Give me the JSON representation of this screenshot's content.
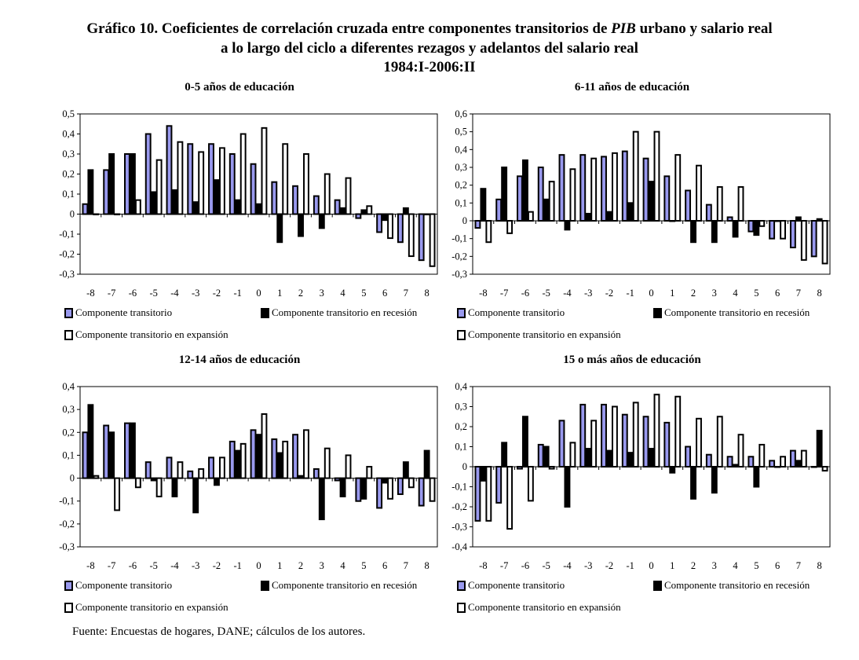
{
  "title": {
    "line1_pre": "Gráfico 10. Coeficientes de correlación cruzada entre componentes transitorios de ",
    "line1_italic": "PIB",
    "line1_post": " urbano y salario real",
    "line2": "a lo largo del ciclo a diferentes rezagos y adelantos del salario real",
    "line3": "1984:I-2006:II"
  },
  "legend": {
    "transitorio": "Componente transitorio",
    "recesion": "Componente transitorio en recesión",
    "expansion": "Componente transitorio en expansión"
  },
  "colors": {
    "transitorio": "#9999ee",
    "recesion": "#000000",
    "expansion": "#ffffff"
  },
  "source": "Fuente: Encuestas de hogares, DANE; cálculos de los autores.",
  "chart_data": [
    {
      "type": "bar",
      "title": "0-5 años de educación",
      "categories": [
        "-8",
        "-7",
        "-6",
        "-5",
        "-4",
        "-3",
        "-2",
        "-1",
        "0",
        "1",
        "2",
        "3",
        "4",
        "5",
        "6",
        "7",
        "8"
      ],
      "ylim": [
        -0.3,
        0.5
      ],
      "yticks": [
        "0,5",
        "0,4",
        "0,3",
        "0,2",
        "0,1",
        "0",
        "-0,1",
        "-0,2",
        "-0,3"
      ],
      "ytick_values": [
        0.5,
        0.4,
        0.3,
        0.2,
        0.1,
        0,
        -0.1,
        -0.2,
        -0.3
      ],
      "legend_position": "bottom",
      "series": [
        {
          "name": "Componente transitorio",
          "values": [
            0.05,
            0.22,
            0.3,
            0.4,
            0.44,
            0.35,
            0.35,
            0.3,
            0.25,
            0.16,
            0.14,
            0.09,
            0.07,
            -0.02,
            -0.09,
            -0.14,
            -0.23
          ]
        },
        {
          "name": "Componente transitorio en recesión",
          "values": [
            0.22,
            0.3,
            0.3,
            0.11,
            0.12,
            0.06,
            0.17,
            0.07,
            0.05,
            -0.14,
            -0.11,
            -0.07,
            0.03,
            0.02,
            -0.03,
            0.03,
            0.0
          ]
        },
        {
          "name": "Componente transitorio en expansión",
          "values": [
            0.0,
            0.0,
            0.07,
            0.27,
            0.36,
            0.31,
            0.33,
            0.4,
            0.43,
            0.35,
            0.3,
            0.2,
            0.18,
            0.04,
            -0.12,
            -0.21,
            -0.26
          ]
        }
      ]
    },
    {
      "type": "bar",
      "title": "6-11 años de educación",
      "categories": [
        "-8",
        "-7",
        "-6",
        "-5",
        "-4",
        "-3",
        "-2",
        "-1",
        "0",
        "1",
        "2",
        "3",
        "4",
        "5",
        "6",
        "7",
        "8"
      ],
      "ylim": [
        -0.3,
        0.6
      ],
      "yticks": [
        "0,6",
        "0,5",
        "0,4",
        "0,3",
        "0,2",
        "0,1",
        "0",
        "-0,1",
        "-0,2",
        "-0,3"
      ],
      "ytick_values": [
        0.6,
        0.5,
        0.4,
        0.3,
        0.2,
        0.1,
        0,
        -0.1,
        -0.2,
        -0.3
      ],
      "legend_position": "bottom",
      "series": [
        {
          "name": "Componente transitorio",
          "values": [
            -0.04,
            0.12,
            0.25,
            0.3,
            0.37,
            0.37,
            0.36,
            0.39,
            0.35,
            0.25,
            0.17,
            0.09,
            0.02,
            -0.06,
            -0.1,
            -0.15,
            -0.2
          ]
        },
        {
          "name": "Componente transitorio en recesión",
          "values": [
            0.18,
            0.3,
            0.34,
            0.12,
            -0.05,
            0.04,
            0.05,
            0.1,
            0.22,
            0.0,
            -0.12,
            -0.12,
            -0.09,
            -0.08,
            0.0,
            0.02,
            0.01
          ]
        },
        {
          "name": "Componente transitorio en expansión",
          "values": [
            -0.12,
            -0.07,
            0.05,
            0.22,
            0.29,
            0.35,
            0.38,
            0.5,
            0.5,
            0.37,
            0.31,
            0.19,
            0.19,
            -0.03,
            -0.1,
            -0.22,
            -0.24
          ]
        }
      ]
    },
    {
      "type": "bar",
      "title": "12-14 años de educación",
      "categories": [
        "-8",
        "-7",
        "-6",
        "-5",
        "-4",
        "-3",
        "-2",
        "-1",
        "0",
        "1",
        "2",
        "3",
        "4",
        "5",
        "6",
        "7",
        "8"
      ],
      "ylim": [
        -0.3,
        0.4
      ],
      "yticks": [
        "0,4",
        "0,3",
        "0,2",
        "0,1",
        "0",
        "-0,1",
        "-0,2",
        "-0,3"
      ],
      "ytick_values": [
        0.4,
        0.3,
        0.2,
        0.1,
        0,
        -0.1,
        -0.2,
        -0.3
      ],
      "legend_position": "bottom",
      "series": [
        {
          "name": "Componente transitorio",
          "values": [
            0.2,
            0.23,
            0.24,
            0.07,
            0.09,
            0.03,
            0.09,
            0.16,
            0.21,
            0.17,
            0.19,
            0.04,
            -0.01,
            -0.1,
            -0.13,
            -0.07,
            -0.12
          ]
        },
        {
          "name": "Componente transitorio en recesión",
          "values": [
            0.32,
            0.2,
            0.24,
            -0.01,
            -0.08,
            -0.15,
            -0.03,
            0.12,
            0.19,
            0.11,
            0.01,
            -0.18,
            -0.08,
            -0.09,
            -0.02,
            0.07,
            0.12
          ]
        },
        {
          "name": "Componente transitorio en expansión",
          "values": [
            0.01,
            -0.14,
            -0.04,
            -0.08,
            0.07,
            0.04,
            0.09,
            0.15,
            0.28,
            0.16,
            0.21,
            0.13,
            0.1,
            0.05,
            -0.09,
            -0.04,
            -0.1
          ]
        }
      ]
    },
    {
      "type": "bar",
      "title": "15 o más años de educación",
      "categories": [
        "-8",
        "-7",
        "-6",
        "-5",
        "-4",
        "-3",
        "-2",
        "-1",
        "0",
        "1",
        "2",
        "3",
        "4",
        "5",
        "6",
        "7",
        "8"
      ],
      "ylim": [
        -0.4,
        0.4
      ],
      "yticks": [
        "0,4",
        "0,3",
        "0,2",
        "0,1",
        "0",
        "-0,1",
        "-0,2",
        "-0,3",
        "-0,4"
      ],
      "ytick_values": [
        0.4,
        0.3,
        0.2,
        0.1,
        0,
        -0.1,
        -0.2,
        -0.3,
        -0.4
      ],
      "legend_position": "bottom",
      "series": [
        {
          "name": "Componente transitorio",
          "values": [
            -0.27,
            -0.18,
            -0.01,
            0.11,
            0.23,
            0.31,
            0.31,
            0.26,
            0.25,
            0.22,
            0.1,
            0.06,
            0.05,
            0.05,
            0.03,
            0.08,
            0.0
          ]
        },
        {
          "name": "Componente transitorio en recesión",
          "values": [
            -0.07,
            0.12,
            0.25,
            0.1,
            -0.2,
            0.09,
            0.08,
            0.07,
            0.09,
            -0.03,
            -0.16,
            -0.13,
            0.01,
            -0.1,
            0.0,
            0.03,
            0.18
          ]
        },
        {
          "name": "Componente transitorio en expansión",
          "values": [
            -0.27,
            -0.31,
            -0.17,
            -0.01,
            0.12,
            0.23,
            0.3,
            0.32,
            0.36,
            0.35,
            0.24,
            0.25,
            0.16,
            0.11,
            0.05,
            0.08,
            -0.02
          ]
        }
      ]
    }
  ]
}
